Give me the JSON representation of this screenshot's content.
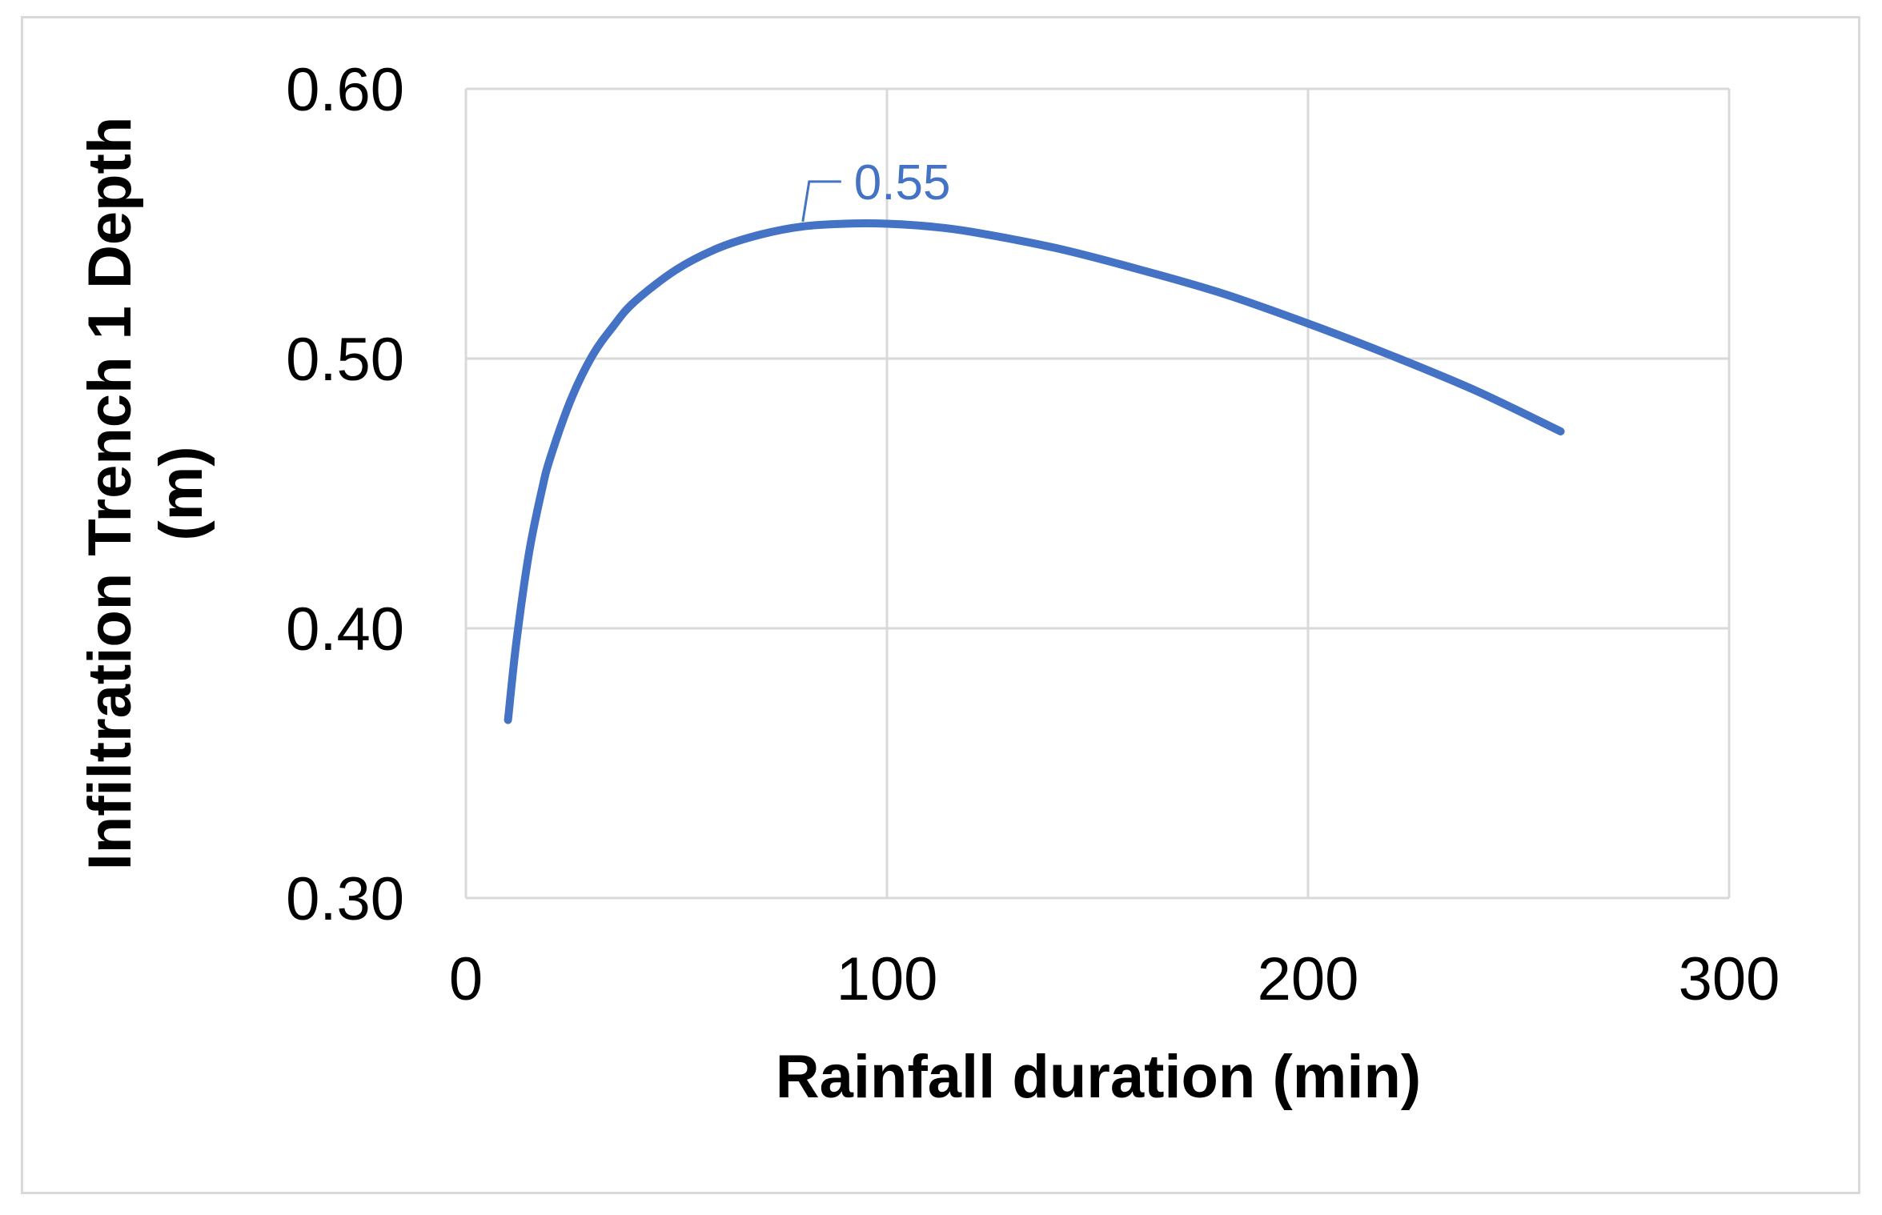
{
  "chart_data": {
    "type": "line",
    "xlabel": "Rainfall duration (min)",
    "ylabel_lines": [
      "Infiltration Trench 1 Depth",
      "(m)"
    ],
    "xlim": [
      0,
      300
    ],
    "ylim": [
      0.3,
      0.6
    ],
    "x_ticks": [
      0,
      100,
      200,
      300
    ],
    "x_tick_labels": [
      "0",
      "100",
      "200",
      "300"
    ],
    "y_ticks": [
      0.3,
      0.4,
      0.5,
      0.6
    ],
    "y_tick_labels": [
      "0.30",
      "0.40",
      "0.50",
      "0.60"
    ],
    "grid": true,
    "legend": "none",
    "series": [
      {
        "color": "#4472c4",
        "x": [
          10,
          12,
          15,
          18,
          20,
          25,
          30,
          35,
          40,
          50,
          60,
          70,
          80,
          90,
          100,
          110,
          120,
          140,
          160,
          180,
          200,
          220,
          240,
          260
        ],
        "y": [
          0.366,
          0.395,
          0.428,
          0.451,
          0.463,
          0.485,
          0.501,
          0.512,
          0.521,
          0.533,
          0.541,
          0.546,
          0.549,
          0.55,
          0.55,
          0.549,
          0.547,
          0.541,
          0.533,
          0.524,
          0.513,
          0.501,
          0.488,
          0.473
        ]
      }
    ],
    "annotations": [
      {
        "text": "0.55",
        "x": 80,
        "y": 0.549,
        "color": "#4472c4"
      }
    ]
  }
}
